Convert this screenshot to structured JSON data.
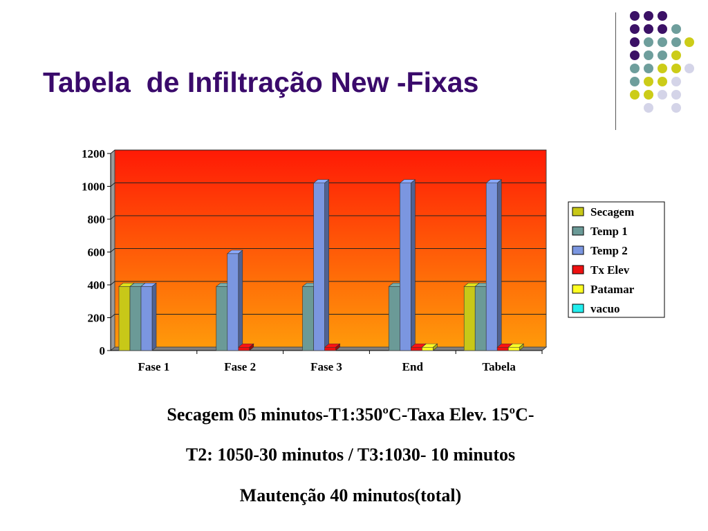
{
  "slide": {
    "title": "Tabela  de Infiltração New -Fixas",
    "captions": [
      "Secagem 05 minutos-T1:350ºC-Taxa Elev. 15ºC-",
      "T2: 1050-30 minutos / T3:1030- 10 minutos",
      "Mautenção 40 minutos(total)"
    ]
  },
  "decoration": {
    "dot_colors": {
      "purple": "#3b1166",
      "teal": "#6e9e9c",
      "olive": "#cccc18",
      "lavender": "#d4d4e8"
    }
  },
  "chart_data": {
    "type": "bar",
    "categories": [
      "Fase 1",
      "Fase 2",
      "Fase 3",
      "End",
      "Tabela"
    ],
    "series": [
      {
        "name": "Secagem",
        "color": "#c8c818",
        "values": [
          390,
          0,
          0,
          0,
          390
        ]
      },
      {
        "name": "Temp 1",
        "color": "#6b9a97",
        "values": [
          390,
          390,
          390,
          390,
          390
        ]
      },
      {
        "name": "Temp 2",
        "color": "#7b96e0",
        "values": [
          390,
          590,
          1020,
          1020,
          1020
        ]
      },
      {
        "name": "Tx Elev",
        "color": "#ee1111",
        "values": [
          0,
          20,
          20,
          20,
          20
        ]
      },
      {
        "name": "Patamar",
        "color": "#ffff22",
        "values": [
          0,
          0,
          0,
          20,
          20
        ]
      },
      {
        "name": "vacuo",
        "color": "#22eeee",
        "values": [
          0,
          0,
          0,
          0,
          0
        ]
      }
    ],
    "yticks": [
      0,
      200,
      400,
      600,
      800,
      1000,
      1200
    ],
    "ylim": [
      0,
      1200
    ],
    "grid": true,
    "legend": "right",
    "background_gradient": [
      "#ff1a05",
      "#ff9a0a"
    ]
  }
}
